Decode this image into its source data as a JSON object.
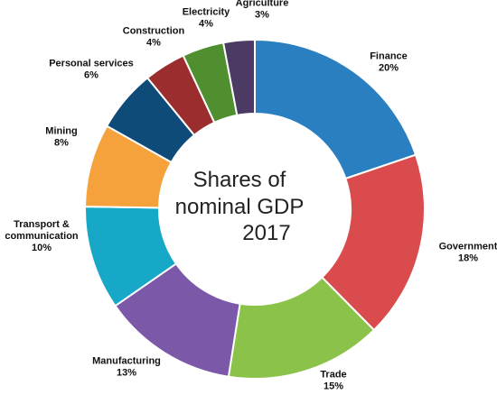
{
  "chart_data": {
    "type": "pie",
    "title_lines": [
      "Shares of",
      "nominal GDP",
      "2017"
    ],
    "slices": [
      {
        "name": "Finance",
        "value": 20,
        "percent_label": "20%",
        "color": "#2a7fc0",
        "label_lines": [
          "Finance"
        ]
      },
      {
        "name": "Government",
        "value": 18,
        "percent_label": "18%",
        "color": "#d94b4c",
        "label_lines": [
          "Government"
        ]
      },
      {
        "name": "Trade",
        "value": 15,
        "percent_label": "15%",
        "color": "#8bc34a",
        "label_lines": [
          "Trade"
        ]
      },
      {
        "name": "Manufacturing",
        "value": 13,
        "percent_label": "13%",
        "color": "#7b59a8",
        "label_lines": [
          "Manufacturing"
        ]
      },
      {
        "name": "Transport & communication",
        "value": 10,
        "percent_label": "10%",
        "color": "#18a8c7",
        "label_lines": [
          "Transport &",
          "communication"
        ]
      },
      {
        "name": "Mining",
        "value": 8,
        "percent_label": "8%",
        "color": "#f6a23c",
        "label_lines": [
          "Mining"
        ]
      },
      {
        "name": "Personal services",
        "value": 6,
        "percent_label": "6%",
        "color": "#0e4b79",
        "label_lines": [
          "Personal services"
        ]
      },
      {
        "name": "Construction",
        "value": 4,
        "percent_label": "4%",
        "color": "#9b2d2f",
        "label_lines": [
          "Construction"
        ]
      },
      {
        "name": "Electricity",
        "value": 4,
        "percent_label": "4%",
        "color": "#4f8f2f",
        "label_lines": [
          "Electricity"
        ]
      },
      {
        "name": "Agriculture",
        "value": 3,
        "percent_label": "3%",
        "color": "#4b3a64",
        "label_lines": [
          "Agriculture"
        ]
      }
    ],
    "legend": "none",
    "grid": false
  }
}
